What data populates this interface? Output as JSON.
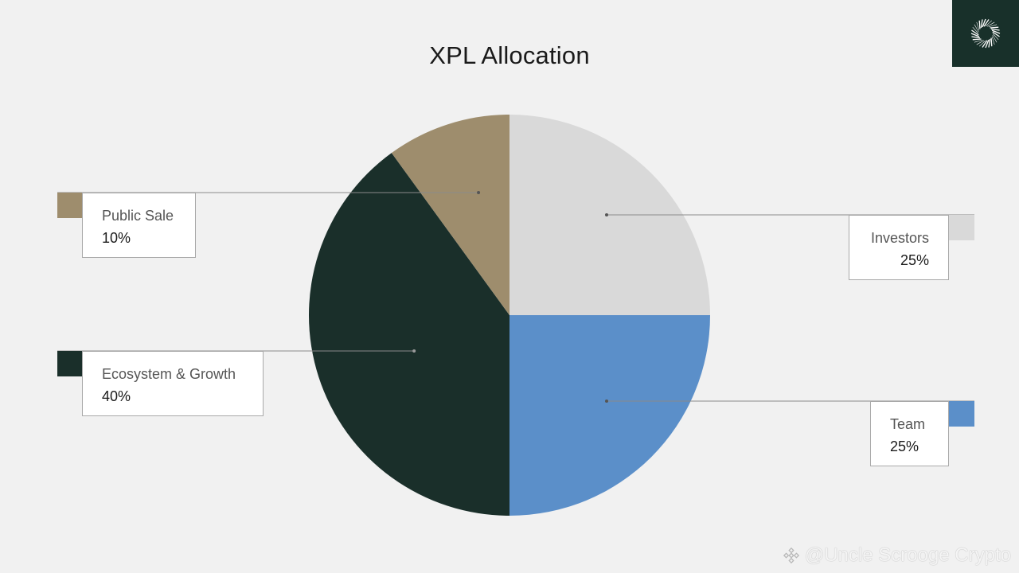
{
  "chart_data": {
    "type": "pie",
    "title": "XPL Allocation",
    "slices": [
      {
        "label": "Investors",
        "value_label": "25%",
        "value": 25,
        "color": "#d9d9d9"
      },
      {
        "label": "Team",
        "value_label": "25%",
        "value": 25,
        "color": "#5b8fc9"
      },
      {
        "label": "Ecosystem & Growth",
        "value_label": "40%",
        "value": 40,
        "color": "#1a2f2a"
      },
      {
        "label": "Public Sale",
        "value_label": "10%",
        "value": 10,
        "color": "#9e8d6d"
      }
    ],
    "start": "12 o'clock",
    "direction": "clockwise",
    "legend": "callout boxes at left and right with leader lines"
  },
  "logo": {
    "icon": "sunburst-logo-icon"
  },
  "watermark": {
    "text": "@Uncle Scrooge Crypto",
    "icon": "binance-diamond-icon"
  }
}
